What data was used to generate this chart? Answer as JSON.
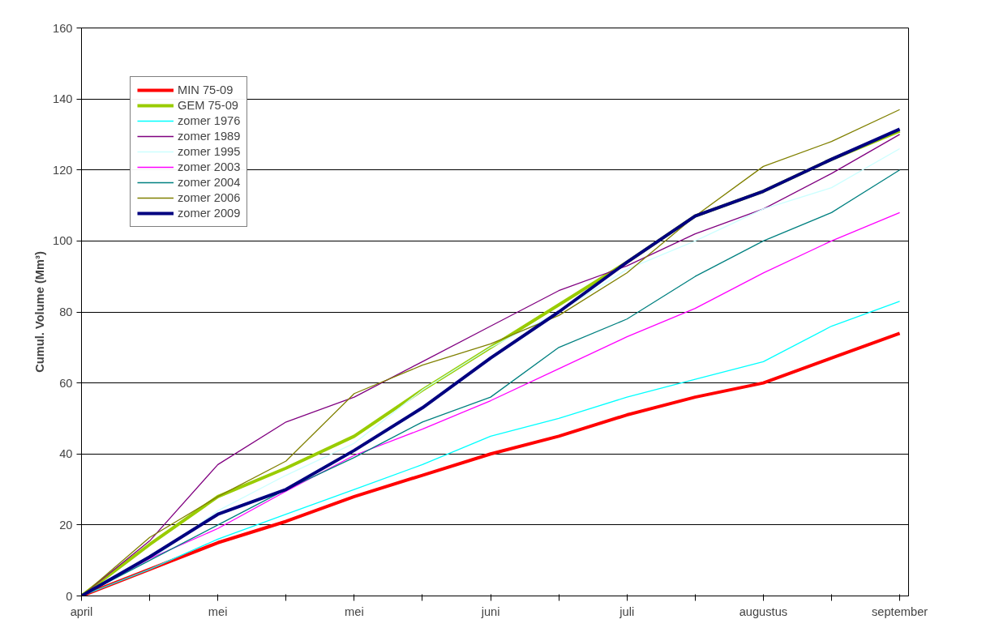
{
  "chart_data": {
    "type": "line",
    "ylabel": "Cumul. Volume (Mm³)",
    "categories": [
      "april",
      null,
      "mei",
      null,
      "mei",
      null,
      "juni",
      null,
      "juli",
      null,
      "augustus",
      null,
      "september"
    ],
    "ylim": [
      0,
      160
    ],
    "yticks": [
      0,
      20,
      40,
      60,
      80,
      100,
      120,
      140,
      160
    ],
    "grid": "y",
    "legend": "top left",
    "line_style": "solid",
    "marker": "none",
    "series": [
      {
        "name": "MIN 75-09",
        "color": "#ff0000",
        "values": [
          0,
          7.5,
          15,
          21,
          28,
          34,
          40,
          45,
          51,
          56,
          60,
          67,
          74
        ]
      },
      {
        "name": "GEM 75-09",
        "color": "#99cc00",
        "values": [
          0,
          14.5,
          28,
          36,
          45,
          58,
          70,
          82,
          94,
          107,
          114,
          123,
          131
        ]
      },
      {
        "name": "zomer 1976",
        "color": "#00ffff",
        "values": [
          0,
          7.5,
          16,
          23,
          30,
          37,
          45,
          50,
          56,
          61,
          66,
          76,
          83
        ]
      },
      {
        "name": "zomer 1989",
        "color": "#800080",
        "values": [
          0,
          15.5,
          37,
          49,
          56,
          66,
          76,
          86,
          93,
          102,
          109,
          119,
          130
        ]
      },
      {
        "name": "zomer 1995",
        "color": "#ccffff",
        "values": [
          0,
          10,
          24,
          34,
          43,
          58,
          70,
          80,
          92,
          100,
          109,
          115,
          126
        ]
      },
      {
        "name": "zomer 2003",
        "color": "#ff00ff",
        "values": [
          0,
          10.5,
          19,
          29.5,
          39.6,
          47,
          55,
          64,
          73,
          81,
          91,
          100,
          108
        ]
      },
      {
        "name": "zomer 2004",
        "color": "#008080",
        "values": [
          0,
          10,
          20,
          30,
          39,
          49,
          56,
          70,
          78,
          90,
          100,
          108,
          120
        ]
      },
      {
        "name": "zomer 2006",
        "color": "#808000",
        "values": [
          0,
          16.5,
          28,
          38,
          57,
          65,
          71,
          79,
          91,
          107,
          121,
          128,
          137
        ]
      },
      {
        "name": "zomer 2009",
        "color": "#000080",
        "values": [
          0,
          11,
          23,
          30,
          41,
          53,
          67,
          80,
          94,
          107,
          114,
          123,
          131.5
        ]
      }
    ]
  }
}
